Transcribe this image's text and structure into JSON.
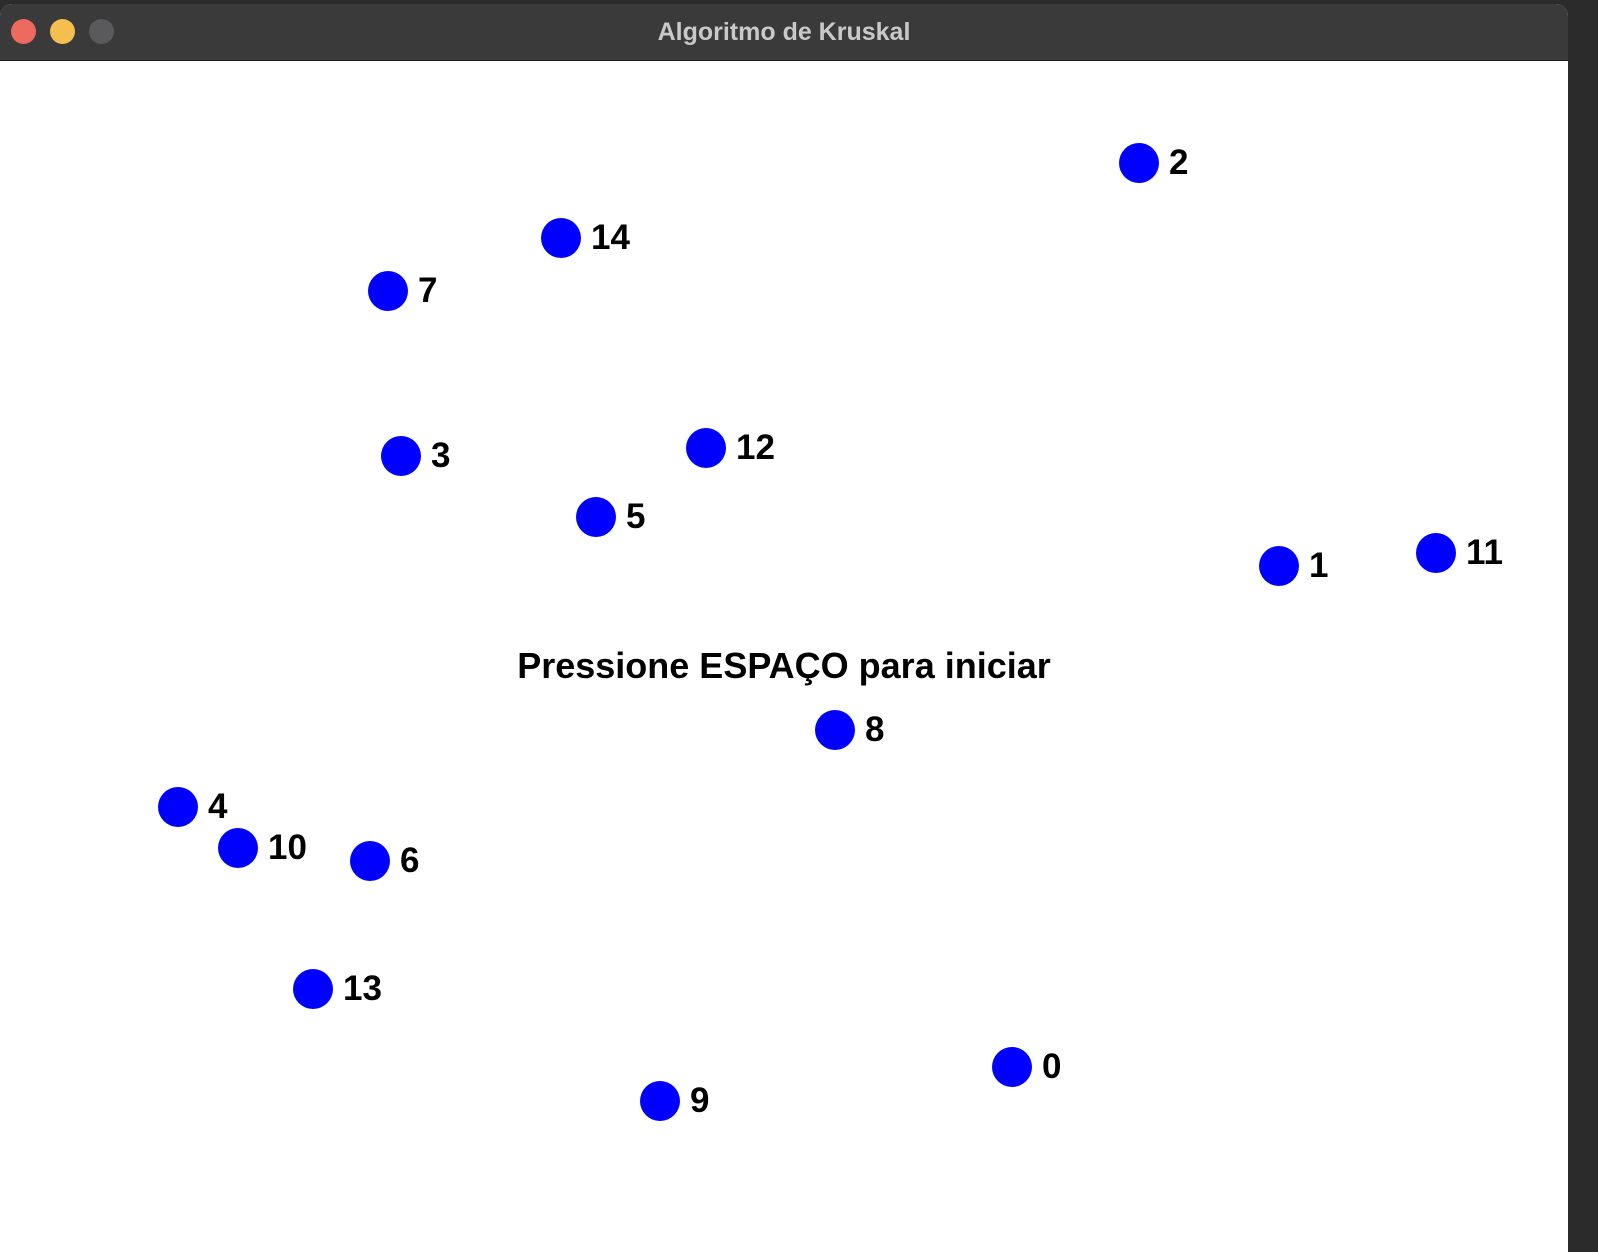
{
  "window": {
    "title": "Algoritmo de Kruskal",
    "controls": [
      "close",
      "minimize",
      "maximize"
    ]
  },
  "colors": {
    "vertex": "#0000ff",
    "label": "#000000",
    "background": "#ffffff",
    "titlebar": "#3a3a3a"
  },
  "canvas": {
    "prompt": "Pressione ESPAÇO para iniciar"
  },
  "vertices": [
    {
      "id": "0"
    },
    {
      "id": "1"
    },
    {
      "id": "2"
    },
    {
      "id": "3"
    },
    {
      "id": "4"
    },
    {
      "id": "5"
    },
    {
      "id": "6"
    },
    {
      "id": "7"
    },
    {
      "id": "8"
    },
    {
      "id": "9"
    },
    {
      "id": "10"
    },
    {
      "id": "11"
    },
    {
      "id": "12"
    },
    {
      "id": "13"
    },
    {
      "id": "14"
    }
  ]
}
